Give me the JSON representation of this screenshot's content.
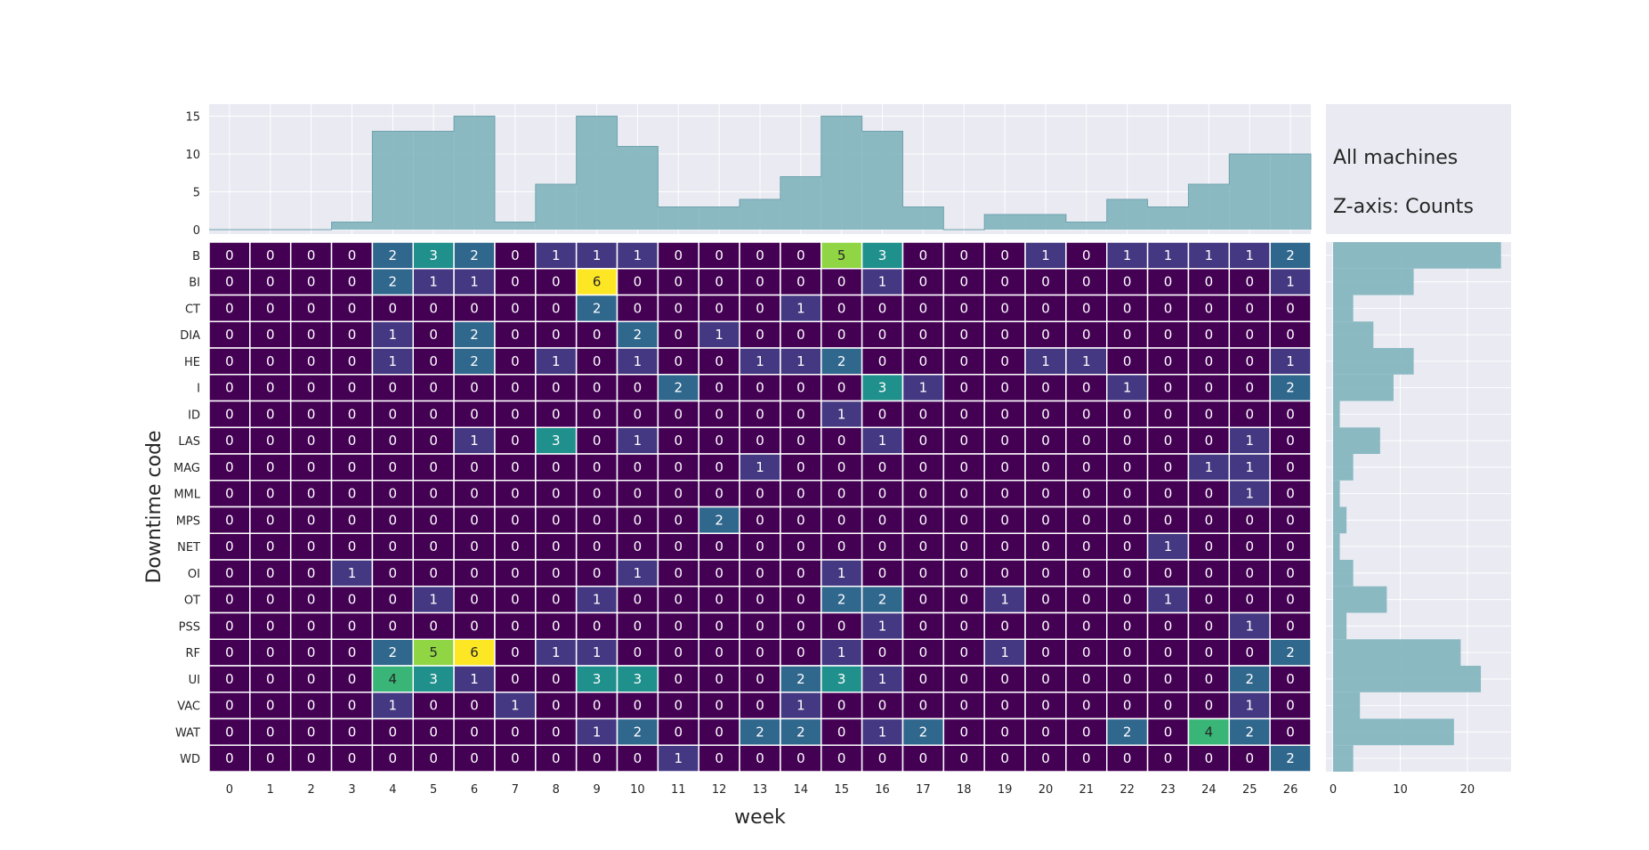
{
  "chart_data": {
    "type": "heatmap",
    "xlabel": "week",
    "ylabel": "Downtime code",
    "x": [
      0,
      1,
      2,
      3,
      4,
      5,
      6,
      7,
      8,
      9,
      10,
      11,
      12,
      13,
      14,
      15,
      16,
      17,
      18,
      19,
      20,
      21,
      22,
      23,
      24,
      25,
      26
    ],
    "y": [
      "B",
      "BI",
      "CT",
      "DIA",
      "HE",
      "I",
      "ID",
      "LAS",
      "MAG",
      "MML",
      "MPS",
      "NET",
      "OI",
      "OT",
      "PSS",
      "RF",
      "UI",
      "VAC",
      "WAT",
      "WD"
    ],
    "z": [
      [
        0,
        0,
        0,
        0,
        2,
        3,
        2,
        0,
        1,
        1,
        1,
        0,
        0,
        0,
        0,
        5,
        3,
        0,
        0,
        0,
        1,
        0,
        1,
        1,
        1,
        1,
        2
      ],
      [
        0,
        0,
        0,
        0,
        2,
        1,
        1,
        0,
        0,
        6,
        0,
        0,
        0,
        0,
        0,
        0,
        1,
        0,
        0,
        0,
        0,
        0,
        0,
        0,
        0,
        0,
        1
      ],
      [
        0,
        0,
        0,
        0,
        0,
        0,
        0,
        0,
        0,
        2,
        0,
        0,
        0,
        0,
        1,
        0,
        0,
        0,
        0,
        0,
        0,
        0,
        0,
        0,
        0,
        0,
        0
      ],
      [
        0,
        0,
        0,
        0,
        1,
        0,
        2,
        0,
        0,
        0,
        2,
        0,
        1,
        0,
        0,
        0,
        0,
        0,
        0,
        0,
        0,
        0,
        0,
        0,
        0,
        0,
        0
      ],
      [
        0,
        0,
        0,
        0,
        1,
        0,
        2,
        0,
        1,
        0,
        1,
        0,
        0,
        1,
        1,
        2,
        0,
        0,
        0,
        0,
        1,
        1,
        0,
        0,
        0,
        0,
        1
      ],
      [
        0,
        0,
        0,
        0,
        0,
        0,
        0,
        0,
        0,
        0,
        0,
        2,
        0,
        0,
        0,
        0,
        3,
        1,
        0,
        0,
        0,
        0,
        1,
        0,
        0,
        0,
        2
      ],
      [
        0,
        0,
        0,
        0,
        0,
        0,
        0,
        0,
        0,
        0,
        0,
        0,
        0,
        0,
        0,
        1,
        0,
        0,
        0,
        0,
        0,
        0,
        0,
        0,
        0,
        0,
        0
      ],
      [
        0,
        0,
        0,
        0,
        0,
        0,
        1,
        0,
        3,
        0,
        1,
        0,
        0,
        0,
        0,
        0,
        1,
        0,
        0,
        0,
        0,
        0,
        0,
        0,
        0,
        1,
        0
      ],
      [
        0,
        0,
        0,
        0,
        0,
        0,
        0,
        0,
        0,
        0,
        0,
        0,
        0,
        1,
        0,
        0,
        0,
        0,
        0,
        0,
        0,
        0,
        0,
        0,
        1,
        1,
        0
      ],
      [
        0,
        0,
        0,
        0,
        0,
        0,
        0,
        0,
        0,
        0,
        0,
        0,
        0,
        0,
        0,
        0,
        0,
        0,
        0,
        0,
        0,
        0,
        0,
        0,
        0,
        1,
        0
      ],
      [
        0,
        0,
        0,
        0,
        0,
        0,
        0,
        0,
        0,
        0,
        0,
        0,
        2,
        0,
        0,
        0,
        0,
        0,
        0,
        0,
        0,
        0,
        0,
        0,
        0,
        0,
        0
      ],
      [
        0,
        0,
        0,
        0,
        0,
        0,
        0,
        0,
        0,
        0,
        0,
        0,
        0,
        0,
        0,
        0,
        0,
        0,
        0,
        0,
        0,
        0,
        0,
        1,
        0,
        0,
        0
      ],
      [
        0,
        0,
        0,
        1,
        0,
        0,
        0,
        0,
        0,
        0,
        1,
        0,
        0,
        0,
        0,
        1,
        0,
        0,
        0,
        0,
        0,
        0,
        0,
        0,
        0,
        0,
        0
      ],
      [
        0,
        0,
        0,
        0,
        0,
        1,
        0,
        0,
        0,
        1,
        0,
        0,
        0,
        0,
        0,
        2,
        2,
        0,
        0,
        1,
        0,
        0,
        0,
        1,
        0,
        0,
        0
      ],
      [
        0,
        0,
        0,
        0,
        0,
        0,
        0,
        0,
        0,
        0,
        0,
        0,
        0,
        0,
        0,
        0,
        1,
        0,
        0,
        0,
        0,
        0,
        0,
        0,
        0,
        1,
        0
      ],
      [
        0,
        0,
        0,
        0,
        2,
        5,
        6,
        0,
        1,
        1,
        0,
        0,
        0,
        0,
        0,
        1,
        0,
        0,
        0,
        1,
        0,
        0,
        0,
        0,
        0,
        0,
        2
      ],
      [
        0,
        0,
        0,
        0,
        4,
        3,
        1,
        0,
        0,
        3,
        3,
        0,
        0,
        0,
        2,
        3,
        1,
        0,
        0,
        0,
        0,
        0,
        0,
        0,
        0,
        2,
        0
      ],
      [
        0,
        0,
        0,
        0,
        1,
        0,
        0,
        1,
        0,
        0,
        0,
        0,
        0,
        0,
        1,
        0,
        0,
        0,
        0,
        0,
        0,
        0,
        0,
        0,
        0,
        1,
        0
      ],
      [
        0,
        0,
        0,
        0,
        0,
        0,
        0,
        0,
        0,
        1,
        2,
        0,
        0,
        2,
        2,
        0,
        1,
        2,
        0,
        0,
        0,
        0,
        2,
        0,
        4,
        2,
        0
      ],
      [
        0,
        0,
        0,
        0,
        0,
        0,
        0,
        0,
        0,
        0,
        0,
        1,
        0,
        0,
        0,
        0,
        0,
        0,
        0,
        0,
        0,
        0,
        0,
        0,
        0,
        0,
        2
      ]
    ],
    "zlim": [
      0,
      6
    ],
    "colormap": "viridis",
    "top_histogram": {
      "type": "step-area",
      "values": [
        0,
        0,
        0,
        1,
        13,
        13,
        15,
        1,
        6,
        15,
        11,
        3,
        3,
        4,
        7,
        15,
        13,
        3,
        0,
        2,
        2,
        1,
        4,
        3,
        6,
        10,
        10
      ],
      "yticks": [
        0,
        5,
        10,
        15
      ],
      "ylim": [
        0,
        16
      ]
    },
    "right_histogram": {
      "type": "step-area",
      "values": [
        25,
        12,
        3,
        6,
        12,
        9,
        1,
        7,
        3,
        1,
        2,
        1,
        3,
        8,
        2,
        19,
        22,
        4,
        18,
        3
      ],
      "xticks": [
        0,
        10,
        20
      ],
      "xlim": [
        0,
        26.5
      ]
    },
    "annotations": [
      "All machines",
      "Z-axis: Counts"
    ],
    "grid": true,
    "fill_color": "#85b6bf",
    "panel_bg": "#e9eaf2"
  }
}
